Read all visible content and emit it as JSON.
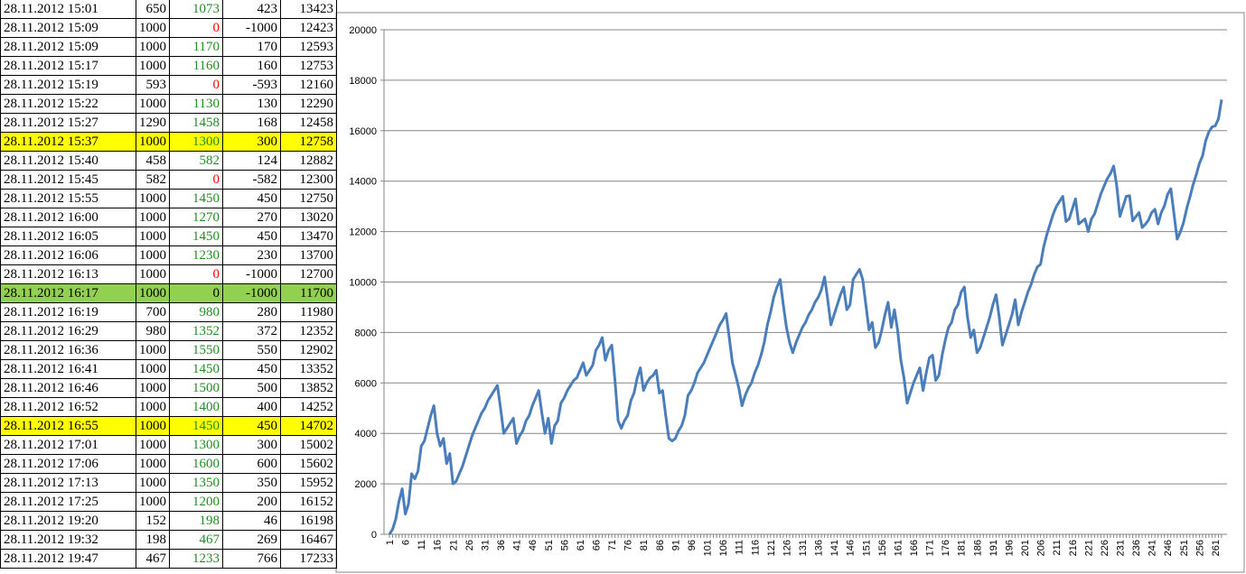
{
  "table": {
    "rows": [
      {
        "cells": [
          "28.11.2012 15:01",
          650,
          1073,
          423,
          13423
        ],
        "payout_color": "#1f8f1f"
      },
      {
        "cells": [
          "28.11.2012 15:09",
          1000,
          0,
          -1000,
          12423
        ],
        "payout_color": "#ff0000"
      },
      {
        "cells": [
          "28.11.2012 15:09",
          1000,
          1170,
          170,
          12593
        ],
        "payout_color": "#1f8f1f"
      },
      {
        "cells": [
          "28.11.2012 15:17",
          1000,
          1160,
          160,
          12753
        ],
        "payout_color": "#1f8f1f"
      },
      {
        "cells": [
          "28.11.2012 15:19",
          593,
          0,
          -593,
          12160
        ],
        "payout_color": "#ff0000"
      },
      {
        "cells": [
          "28.11.2012 15:22",
          1000,
          1130,
          130,
          12290
        ],
        "payout_color": "#1f8f1f"
      },
      {
        "cells": [
          "28.11.2012 15:27",
          1290,
          1458,
          168,
          12458
        ],
        "payout_color": "#1f8f1f"
      },
      {
        "cells": [
          "28.11.2012 15:37",
          1000,
          1300,
          300,
          12758
        ],
        "payout_color": "#1f8f1f",
        "fill": "#ffff00"
      },
      {
        "cells": [
          "28.11.2012 15:40",
          458,
          582,
          124,
          12882
        ],
        "payout_color": "#1f8f1f"
      },
      {
        "cells": [
          "28.11.2012 15:45",
          582,
          0,
          -582,
          12300
        ],
        "payout_color": "#ff0000"
      },
      {
        "cells": [
          "28.11.2012 15:55",
          1000,
          1450,
          450,
          12750
        ],
        "payout_color": "#1f8f1f"
      },
      {
        "cells": [
          "28.11.2012 16:00",
          1000,
          1270,
          270,
          13020
        ],
        "payout_color": "#1f8f1f"
      },
      {
        "cells": [
          "28.11.2012 16:05",
          1000,
          1450,
          450,
          13470
        ],
        "payout_color": "#1f8f1f"
      },
      {
        "cells": [
          "28.11.2012 16:06",
          1000,
          1230,
          230,
          13700
        ],
        "payout_color": "#1f8f1f"
      },
      {
        "cells": [
          "28.11.2012 16:13",
          1000,
          0,
          -1000,
          12700
        ],
        "payout_color": "#ff0000"
      },
      {
        "cells": [
          "28.11.2012 16:17",
          1000,
          0,
          -1000,
          11700
        ],
        "payout_color": "#000000",
        "fill": "#92d050"
      },
      {
        "cells": [
          "28.11.2012 16:19",
          700,
          980,
          280,
          11980
        ],
        "payout_color": "#1f8f1f"
      },
      {
        "cells": [
          "28.11.2012 16:29",
          980,
          1352,
          372,
          12352
        ],
        "payout_color": "#1f8f1f"
      },
      {
        "cells": [
          "28.11.2012 16:36",
          1000,
          1550,
          550,
          12902
        ],
        "payout_color": "#1f8f1f"
      },
      {
        "cells": [
          "28.11.2012 16:41",
          1000,
          1450,
          450,
          13352
        ],
        "payout_color": "#1f8f1f"
      },
      {
        "cells": [
          "28.11.2012 16:46",
          1000,
          1500,
          500,
          13852
        ],
        "payout_color": "#1f8f1f"
      },
      {
        "cells": [
          "28.11.2012 16:52",
          1000,
          1400,
          400,
          14252
        ],
        "payout_color": "#1f8f1f"
      },
      {
        "cells": [
          "28.11.2012 16:55",
          1000,
          1450,
          450,
          14702
        ],
        "payout_color": "#1f8f1f",
        "fill": "#ffff00"
      },
      {
        "cells": [
          "28.11.2012 17:01",
          1000,
          1300,
          300,
          15002
        ],
        "payout_color": "#1f8f1f"
      },
      {
        "cells": [
          "28.11.2012 17:06",
          1000,
          1600,
          600,
          15602
        ],
        "payout_color": "#1f8f1f"
      },
      {
        "cells": [
          "28.11.2012 17:13",
          1000,
          1350,
          350,
          15952
        ],
        "payout_color": "#1f8f1f"
      },
      {
        "cells": [
          "28.11.2012 17:25",
          1000,
          1200,
          200,
          16152
        ],
        "payout_color": "#1f8f1f"
      },
      {
        "cells": [
          "28.11.2012 19:20",
          152,
          198,
          46,
          16198
        ],
        "payout_color": "#1f8f1f"
      },
      {
        "cells": [
          "28.11.2012 19:32",
          198,
          467,
          269,
          16467
        ],
        "payout_color": "#1f8f1f"
      },
      {
        "cells": [
          "28.11.2012 19:47",
          467,
          1233,
          766,
          17233
        ],
        "payout_color": "#1f8f1f"
      }
    ]
  },
  "chart_data": {
    "type": "line",
    "color": "#4a7ebb",
    "grid": true,
    "ylim": [
      0,
      20000
    ],
    "yticks": [
      0,
      2000,
      4000,
      6000,
      8000,
      10000,
      12000,
      14000,
      16000,
      18000,
      20000
    ],
    "categories": [
      "1",
      null,
      null,
      null,
      null,
      "6",
      null,
      null,
      null,
      null,
      "11",
      null,
      null,
      null,
      null,
      "16",
      null,
      null,
      null,
      null,
      "21",
      null,
      null,
      null,
      null,
      "26",
      null,
      null,
      null,
      null,
      "31",
      null,
      null,
      null,
      null,
      "36",
      null,
      null,
      null,
      null,
      "41",
      null,
      null,
      null,
      null,
      "46",
      null,
      null,
      null,
      null,
      "51",
      null,
      null,
      null,
      null,
      "56",
      null,
      null,
      null,
      null,
      "61",
      null,
      null,
      null,
      null,
      "66",
      null,
      null,
      null,
      null,
      "71",
      null,
      null,
      null,
      null,
      "76",
      null,
      null,
      null,
      null,
      "81",
      null,
      null,
      null,
      null,
      "86",
      null,
      null,
      null,
      null,
      "91",
      null,
      null,
      null,
      null,
      "96",
      null,
      null,
      null,
      null,
      "101",
      null,
      null,
      null,
      null,
      "106",
      null,
      null,
      null,
      null,
      "111",
      null,
      null,
      null,
      null,
      "116",
      null,
      null,
      null,
      null,
      "121",
      null,
      null,
      null,
      null,
      "126",
      null,
      null,
      null,
      null,
      "131",
      null,
      null,
      null,
      null,
      "136",
      null,
      null,
      null,
      null,
      "141",
      null,
      null,
      null,
      null,
      "146",
      null,
      null,
      null,
      null,
      "151",
      null,
      null,
      null,
      null,
      "156",
      null,
      null,
      null,
      null,
      "161",
      null,
      null,
      null,
      null,
      "166",
      null,
      null,
      null,
      null,
      "171",
      null,
      null,
      null,
      null,
      "176",
      null,
      null,
      null,
      null,
      "181",
      null,
      null,
      null,
      null,
      "186",
      null,
      null,
      null,
      null,
      "191",
      null,
      null,
      null,
      null,
      "196",
      null,
      null,
      null,
      null,
      "201",
      null,
      null,
      null,
      null,
      "206",
      null,
      null,
      null,
      null,
      "211",
      null,
      null,
      null,
      null,
      "216",
      null,
      null,
      null,
      null,
      "221",
      null,
      null,
      null,
      null,
      "226",
      null,
      null,
      null,
      null,
      "231",
      null,
      null,
      null,
      null,
      "236",
      null,
      null,
      null,
      null,
      "241",
      null,
      null,
      null,
      null,
      "246",
      null,
      null,
      null,
      null,
      "251",
      null,
      null,
      null,
      null,
      "256",
      null,
      null,
      null,
      null,
      "261",
      null,
      null
    ],
    "values": [
      0,
      200,
      600,
      1300,
      1800,
      800,
      1200,
      2400,
      2200,
      2500,
      3500,
      3700,
      4200,
      4700,
      5100,
      4000,
      3500,
      3800,
      2800,
      3200,
      2000,
      2100,
      2400,
      2700,
      3100,
      3500,
      3900,
      4200,
      4500,
      4800,
      5000,
      5300,
      5500,
      5700,
      5900,
      5000,
      4000,
      4200,
      4400,
      4600,
      3600,
      3900,
      4100,
      4500,
      4700,
      5100,
      5400,
      5700,
      4800,
      4000,
      4600,
      3600,
      4300,
      4500,
      5200,
      5400,
      5700,
      5900,
      6100,
      6200,
      6500,
      6800,
      6300,
      6500,
      6700,
      7300,
      7500,
      7800,
      6900,
      7300,
      7500,
      6100,
      4500,
      4200,
      4500,
      4700,
      5300,
      5600,
      6200,
      6600,
      5700,
      6000,
      6200,
      6300,
      6500,
      5600,
      5700,
      4700,
      3800,
      3700,
      3800,
      4100,
      4300,
      4700,
      5500,
      5700,
      6000,
      6400,
      6600,
      6800,
      7100,
      7400,
      7700,
      8000,
      8300,
      8500,
      8750,
      7800,
      6800,
      6300,
      5800,
      5100,
      5500,
      5800,
      6000,
      6400,
      6700,
      7100,
      7600,
      8300,
      8800,
      9400,
      9800,
      10100,
      9100,
      8200,
      7600,
      7200,
      7600,
      7900,
      8200,
      8400,
      8700,
      8900,
      9200,
      9400,
      9700,
      10200,
      9300,
      8300,
      8700,
      9100,
      9500,
      9800,
      8900,
      9100,
      10100,
      10300,
      10500,
      10100,
      9100,
      8100,
      8400,
      7400,
      7600,
      8100,
      8700,
      9200,
      8200,
      8900,
      8100,
      6900,
      6200,
      5200,
      5600,
      6000,
      6300,
      6600,
      5700,
      6400,
      7000,
      7100,
      6100,
      6300,
      7100,
      7700,
      8200,
      8400,
      8900,
      9100,
      9600,
      9800,
      8600,
      7800,
      8100,
      7200,
      7400,
      7800,
      8200,
      8600,
      9100,
      9500,
      8600,
      7500,
      7900,
      8300,
      8700,
      9300,
      8300,
      8800,
      9200,
      9600,
      9900,
      10300,
      10600,
      10700,
      11400,
      11900,
      12300,
      12700,
      13000,
      13200,
      13400,
      12400,
      12500,
      12900,
      13300,
      12300,
      12400,
      12500,
      12000,
      12500,
      12700,
      13100,
      13500,
      13800,
      14100,
      14300,
      14600,
      13800,
      12600,
      13000,
      13400,
      13423,
      12423,
      12593,
      12753,
      12160,
      12290,
      12458,
      12758,
      12882,
      12300,
      12750,
      13020,
      13470,
      13700,
      12700,
      11700,
      11980,
      12352,
      12902,
      13352,
      13852,
      14252,
      14702,
      15002,
      15602,
      15952,
      16152,
      16198,
      16467,
      17233
    ]
  }
}
